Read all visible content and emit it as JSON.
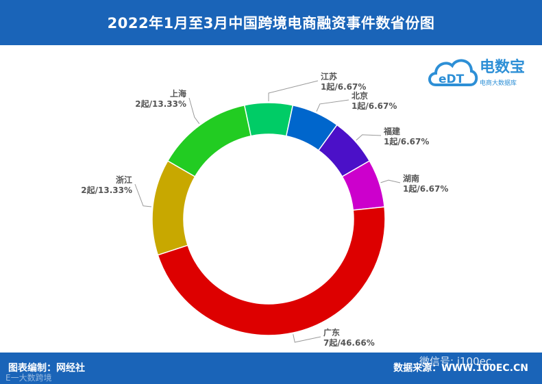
{
  "header": {
    "title": "2022年1月至3月中国跨境电商融资事件数省份图"
  },
  "footer": {
    "left_text": "图表编制：网经社",
    "right_text": "数据来源：WWW.100EC.CN",
    "watermark_wechat": "微信号: i100ec",
    "watermark_bottom": "E一大数跨境"
  },
  "logo": {
    "mark": "eDT",
    "brand": "电数宝",
    "subtitle": "电商大数据库"
  },
  "colors": {
    "header_bg": "#1a64b8",
    "footer_bg": "#1a64b8",
    "label_text": "#555555",
    "leader_line": "#999999"
  },
  "chart_data": {
    "type": "pie",
    "variant": "donut",
    "title": "2022年1月至3月中国跨境电商融资事件数省份图",
    "unit": "起",
    "slices": [
      {
        "name": "江苏",
        "value": 1,
        "percent": "6.67%",
        "label": "1起/6.67%",
        "color": "#00cc66"
      },
      {
        "name": "北京",
        "value": 1,
        "percent": "6.67%",
        "label": "1起/6.67%",
        "color": "#0066cc"
      },
      {
        "name": "福建",
        "value": 1,
        "percent": "6.67%",
        "label": "1起/6.67%",
        "color": "#4b10c8"
      },
      {
        "name": "湖南",
        "value": 1,
        "percent": "6.67%",
        "label": "1起/6.67%",
        "color": "#cc00cc"
      },
      {
        "name": "广东",
        "value": 7,
        "percent": "46.66%",
        "label": "7起/46.66%",
        "color": "#dd0000"
      },
      {
        "name": "浙江",
        "value": 2,
        "percent": "13.33%",
        "label": "2起/13.33%",
        "color": "#c8a800"
      },
      {
        "name": "上海",
        "value": 2,
        "percent": "13.33%",
        "label": "2起/13.33%",
        "color": "#22cc22"
      }
    ],
    "start_angle_deg": -12,
    "direction": "clockwise",
    "legend": "none"
  }
}
